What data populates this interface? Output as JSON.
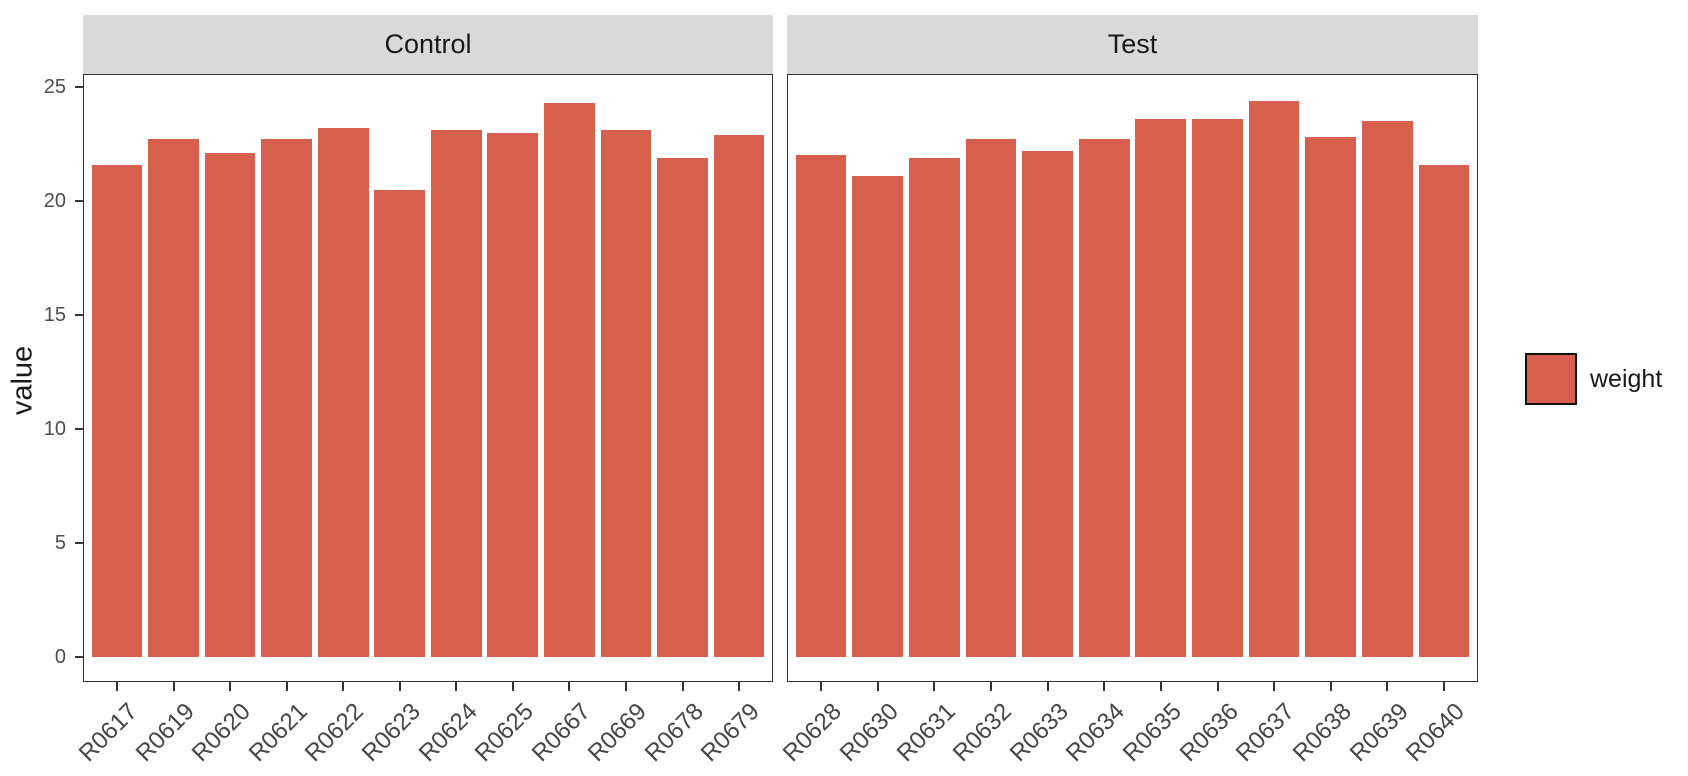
{
  "chart_data": {
    "type": "bar",
    "title": "",
    "xlabel": "",
    "ylabel": "value",
    "ylim": [
      0,
      25
    ],
    "yticks": [
      "0",
      "5",
      "10",
      "15",
      "20",
      "25"
    ],
    "grid": false,
    "legend_position": "right",
    "legend_entries": [
      {
        "label": "weight",
        "color": "#D6604D"
      }
    ],
    "facets": [
      {
        "label": "Control",
        "categories": [
          "R0617",
          "R0619",
          "R0620",
          "R0621",
          "R0622",
          "R0623",
          "R0624",
          "R0625",
          "R0667",
          "R0669",
          "R0678",
          "R0679"
        ],
        "values": [
          21.6,
          22.7,
          22.1,
          22.7,
          23.2,
          20.5,
          23.1,
          23.0,
          24.3,
          23.1,
          21.9,
          22.9
        ]
      },
      {
        "label": "Test",
        "categories": [
          "R0628",
          "R0630",
          "R0631",
          "R0632",
          "R0633",
          "R0634",
          "R0635",
          "R0636",
          "R0637",
          "R0638",
          "R0639",
          "R0640"
        ],
        "values": [
          22.0,
          21.1,
          21.9,
          22.7,
          22.2,
          22.7,
          23.6,
          23.6,
          24.4,
          22.8,
          23.5,
          21.6
        ]
      }
    ],
    "colors": {
      "bar_fill": "#D6604D",
      "strip_background": "#D9D9D9",
      "panel_border": "#333333",
      "axis_text": "#4D4D4D",
      "label_text": "#1A1A1A"
    }
  }
}
